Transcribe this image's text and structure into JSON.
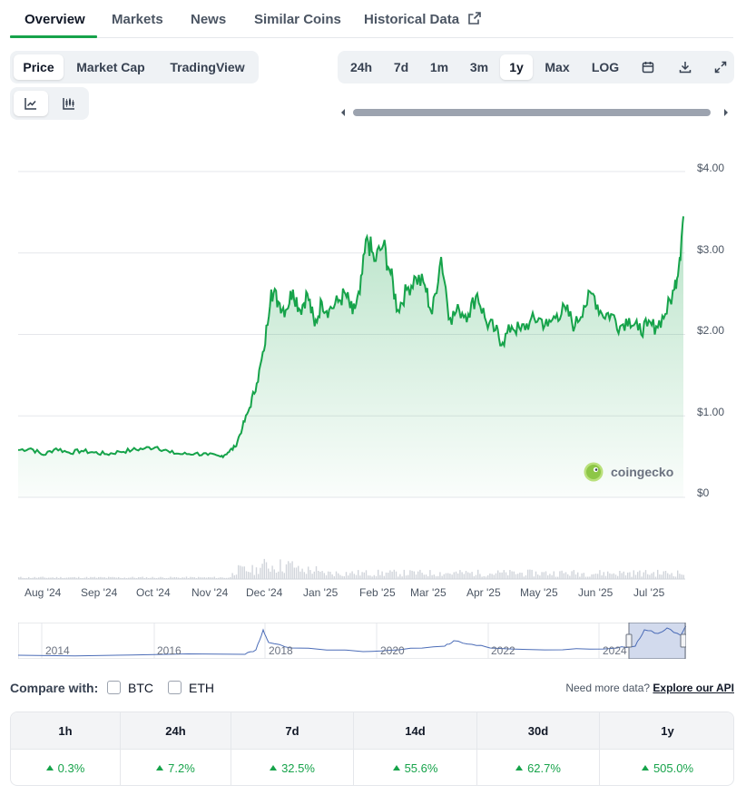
{
  "tabs": [
    {
      "label": "Overview",
      "active": true
    },
    {
      "label": "Markets"
    },
    {
      "label": "News"
    },
    {
      "label": "Similar Coins"
    },
    {
      "label": "Historical Data",
      "icon": "external-link-icon"
    }
  ],
  "chart_mode": {
    "options": [
      "Price",
      "Market Cap",
      "TradingView"
    ],
    "selected": "Price"
  },
  "chart_style": {
    "options": [
      {
        "icon": "line-chart-icon",
        "selected": true
      },
      {
        "icon": "candlestick-chart-icon"
      }
    ]
  },
  "ranges": {
    "options": [
      "24h",
      "7d",
      "1m",
      "3m",
      "1y",
      "Max",
      "LOG"
    ],
    "selected": "1y",
    "icons": [
      "calendar-icon",
      "download-icon",
      "expand-icon"
    ]
  },
  "chart_data": {
    "type": "area",
    "series": [
      {
        "values_x": "date",
        "values_y": "price"
      }
    ],
    "x": [
      "2024-07-15",
      "2024-07-22",
      "2024-07-29",
      "2024-08-05",
      "2024-08-12",
      "2024-08-19",
      "2024-08-26",
      "2024-09-02",
      "2024-09-09",
      "2024-09-16",
      "2024-09-23",
      "2024-09-30",
      "2024-10-07",
      "2024-10-14",
      "2024-10-21",
      "2024-10-28",
      "2024-11-04",
      "2024-11-08",
      "2024-11-12",
      "2024-11-16",
      "2024-11-20",
      "2024-11-24",
      "2024-11-28",
      "2024-12-02",
      "2024-12-06",
      "2024-12-10",
      "2024-12-14",
      "2024-12-18",
      "2024-12-22",
      "2024-12-26",
      "2024-12-30",
      "2025-01-03",
      "2025-01-08",
      "2025-01-12",
      "2025-01-16",
      "2025-01-20",
      "2025-01-24",
      "2025-01-28",
      "2025-02-02",
      "2025-02-06",
      "2025-02-10",
      "2025-02-15",
      "2025-02-20",
      "2025-02-25",
      "2025-03-01",
      "2025-03-06",
      "2025-03-11",
      "2025-03-16",
      "2025-03-21",
      "2025-03-26",
      "2025-03-31",
      "2025-04-05",
      "2025-04-09",
      "2025-04-14",
      "2025-04-19",
      "2025-04-24",
      "2025-04-29",
      "2025-05-04",
      "2025-05-09",
      "2025-05-14",
      "2025-05-19",
      "2025-05-24",
      "2025-05-29",
      "2025-06-03",
      "2025-06-08",
      "2025-06-13",
      "2025-06-18",
      "2025-06-23",
      "2025-06-28",
      "2025-07-03",
      "2025-07-08",
      "2025-07-13",
      "2025-07-16",
      "2025-07-18"
    ],
    "y": [
      0.58,
      0.6,
      0.52,
      0.6,
      0.55,
      0.57,
      0.55,
      0.53,
      0.56,
      0.58,
      0.6,
      0.62,
      0.55,
      0.53,
      0.54,
      0.52,
      0.5,
      0.55,
      0.62,
      0.85,
      1.1,
      1.4,
      1.8,
      2.55,
      2.4,
      2.3,
      2.55,
      2.3,
      2.5,
      2.1,
      2.4,
      2.3,
      2.4,
      2.5,
      2.25,
      2.5,
      3.2,
      2.9,
      3.1,
      2.75,
      2.3,
      2.55,
      2.7,
      2.6,
      2.25,
      2.95,
      2.2,
      2.3,
      2.25,
      2.5,
      2.15,
      2.05,
      1.9,
      2.1,
      2.05,
      2.15,
      2.2,
      2.1,
      2.25,
      2.3,
      2.1,
      2.35,
      2.5,
      2.25,
      2.25,
      2.1,
      2.2,
      2.05,
      2.1,
      2.1,
      2.25,
      2.55,
      2.95,
      3.45
    ],
    "y_ticks": [
      "$4.00",
      "$3.00",
      "$2.00",
      "$1.00",
      "$0"
    ],
    "ylim": [
      0,
      4
    ],
    "x_ticks": [
      "Aug '24",
      "Sep '24",
      "Oct '24",
      "Nov '24",
      "Dec '24",
      "Jan '25",
      "Feb '25",
      "Mar '25",
      "Apr '25",
      "May '25",
      "Jun '25",
      "Jul '25"
    ],
    "line_color": "#16a34a",
    "fill_color": "#16a34a",
    "grid": true,
    "volume_bars": true
  },
  "watermark": "coingecko",
  "navigator": {
    "labels": [
      "2014",
      "2016",
      "2018",
      "2020",
      "2022",
      "2024"
    ]
  },
  "compare": {
    "label": "Compare with:",
    "options": [
      "BTC",
      "ETH"
    ]
  },
  "api": {
    "prefix": "Need more data?",
    "link": "Explore our API"
  },
  "performance": {
    "headers": [
      "1h",
      "24h",
      "7d",
      "14d",
      "30d",
      "1y"
    ],
    "values": [
      "0.3%",
      "7.2%",
      "32.5%",
      "55.6%",
      "62.7%",
      "505.0%"
    ],
    "direction": "up",
    "color": "#16a34a"
  }
}
